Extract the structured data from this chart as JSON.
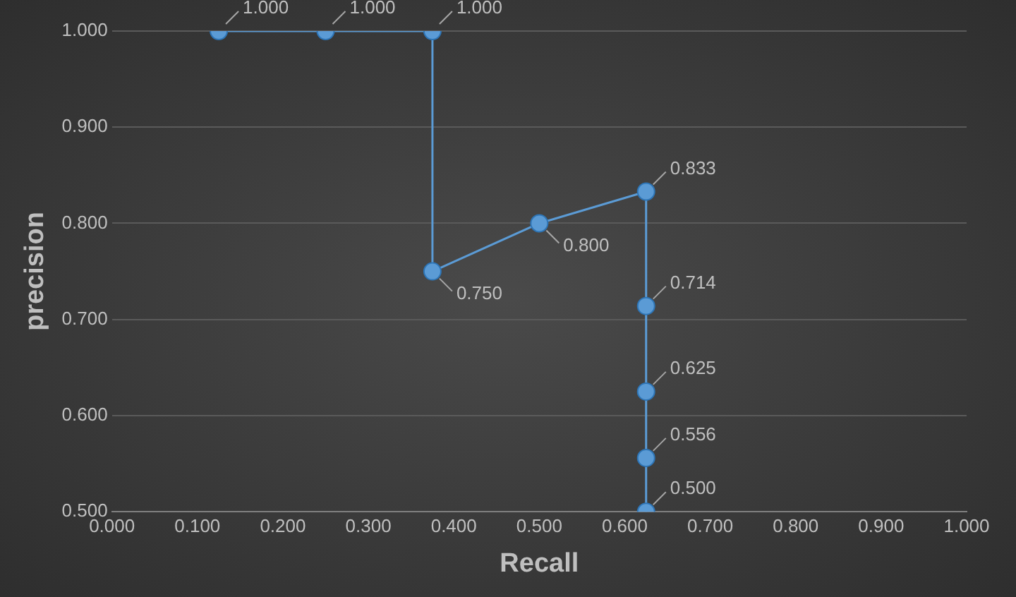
{
  "chart_data": {
    "type": "line",
    "xlabel": "Recall",
    "ylabel": "precision",
    "x": [
      0.125,
      0.25,
      0.375,
      0.375,
      0.5,
      0.625,
      0.625,
      0.625,
      0.625,
      0.625
    ],
    "series": [
      {
        "color": "#5b9bd5",
        "values": [
          1,
          1,
          1,
          0.75,
          0.8,
          0.833,
          0.714,
          0.625,
          0.556,
          0.5
        ],
        "value_labels": [
          "1.000",
          "1.000",
          "1.000",
          "0.750",
          "0.800",
          "0.833",
          "0.714",
          "0.625",
          "0.556",
          "0.500"
        ]
      }
    ],
    "xlim": [
      0,
      1
    ],
    "xticks": [
      {
        "value": 0,
        "label": "0.000"
      },
      {
        "value": 0.1,
        "label": "0.100"
      },
      {
        "value": 0.2,
        "label": "0.200"
      },
      {
        "value": 0.3,
        "label": "0.300"
      },
      {
        "value": 0.4,
        "label": "0.400"
      },
      {
        "value": 0.5,
        "label": "0.500"
      },
      {
        "value": 0.6,
        "label": "0.600"
      },
      {
        "value": 0.7,
        "label": "0.700"
      },
      {
        "value": 0.8,
        "label": "0.800"
      },
      {
        "value": 0.9,
        "label": "0.900"
      },
      {
        "value": 1,
        "label": "1.000"
      }
    ],
    "ylim": [
      0.5,
      1
    ],
    "yticks": [
      {
        "value": 0.5,
        "label": "0.500"
      },
      {
        "value": 0.6,
        "label": "0.600"
      },
      {
        "value": 0.7,
        "label": "0.700"
      },
      {
        "value": 0.8,
        "label": "0.800"
      },
      {
        "value": 0.9,
        "label": "0.900"
      },
      {
        "value": 1,
        "label": "1.000"
      }
    ],
    "grid": "y",
    "legend": false,
    "marker": "circle",
    "line_style": "solid"
  }
}
